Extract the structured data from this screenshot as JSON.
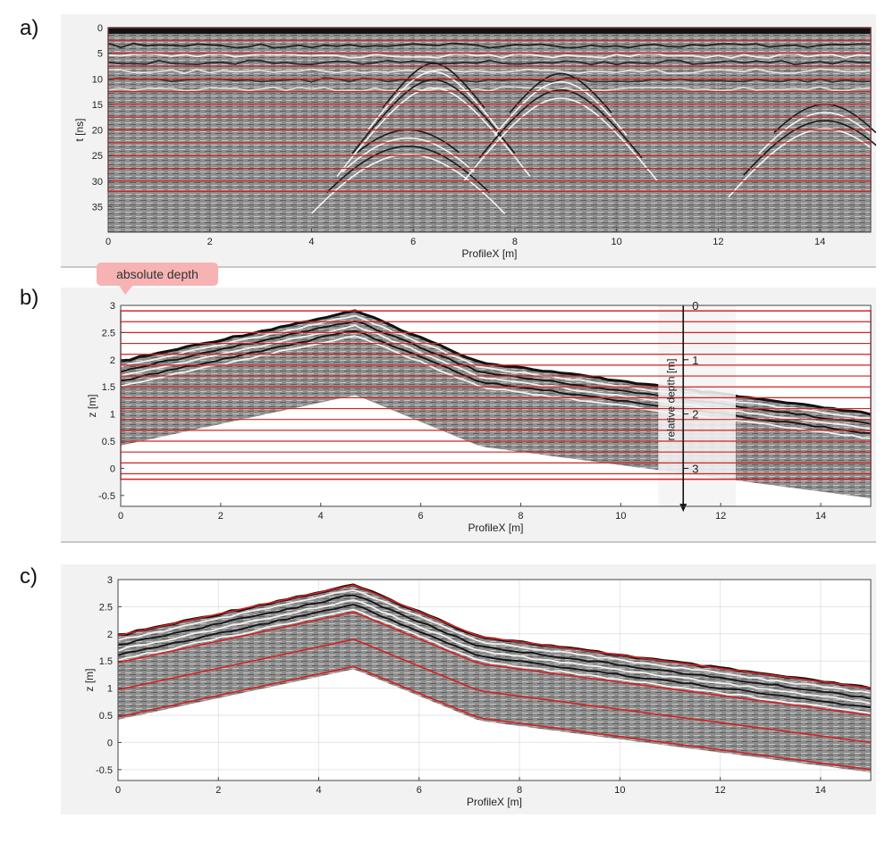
{
  "panels": {
    "a": {
      "letter": "a)"
    },
    "b": {
      "letter": "b)",
      "callout": "absolute depth"
    },
    "c": {
      "letter": "c)"
    }
  },
  "colors": {
    "panel_background": "#f2f2f2",
    "grid_red": "#d62020",
    "callout_pink": "#f7b3b3",
    "radargram_gray": "#8c8c8c"
  },
  "chart_data": [
    {
      "id": "a",
      "type": "heatmap",
      "description_kind": "GPR radargram (time domain)",
      "xlabel": "ProfileX [m]",
      "ylabel": "t [ns]",
      "xlim": [
        0,
        15
      ],
      "ylim": [
        40,
        0
      ],
      "xticks": [
        0,
        2,
        4,
        6,
        8,
        10,
        12,
        14
      ],
      "yticks": [
        0,
        5,
        10,
        15,
        20,
        25,
        30,
        35
      ],
      "grid": true,
      "overlay_box_t": [
        0,
        32
      ],
      "overlay_slices_t": [
        0,
        2.5,
        5,
        7.5,
        10,
        12.5,
        15,
        17.5,
        20,
        22.5,
        25,
        27.5,
        30,
        32
      ],
      "hyperbola_apexes": [
        {
          "x": 5.9,
          "t": 20
        },
        {
          "x": 6.4,
          "t": 7
        },
        {
          "x": 8.9,
          "t": 9
        },
        {
          "x": 14.1,
          "t": 15
        }
      ]
    },
    {
      "id": "b",
      "type": "heatmap",
      "description_kind": "topography-corrected radargram with absolute-depth slices",
      "xlabel": "ProfileX [m]",
      "ylabel": "z [m]",
      "xlim": [
        0,
        15
      ],
      "ylim": [
        -0.7,
        3
      ],
      "xticks": [
        0,
        2,
        4,
        6,
        8,
        10,
        12,
        14
      ],
      "yticks": [
        -0.5,
        0,
        0.5,
        1,
        1.5,
        2,
        2.5,
        3
      ],
      "grid": false,
      "surface_profile": {
        "x": [
          0,
          4.7,
          7.2,
          15
        ],
        "z": [
          1.97,
          2.9,
          1.95,
          1.0
        ]
      },
      "overlay_box_z": [
        -0.2,
        2.9
      ],
      "overlay_slices_z": [
        2.9,
        2.7,
        2.5,
        2.3,
        2.1,
        1.9,
        1.7,
        1.5,
        1.3,
        1.1,
        0.9,
        0.7,
        0.5,
        0.3,
        0.1,
        -0.1,
        -0.2
      ],
      "relative_axis": {
        "label": "relative depth [m]",
        "ticks": [
          0,
          1,
          2,
          3
        ]
      }
    },
    {
      "id": "c",
      "type": "heatmap",
      "description_kind": "topography-corrected radargram with relative-depth slices",
      "xlabel": "ProfileX [m]",
      "ylabel": "z [m]",
      "xlim": [
        0,
        15
      ],
      "ylim": [
        -0.7,
        3
      ],
      "xticks": [
        0,
        2,
        4,
        6,
        8,
        10,
        12,
        14
      ],
      "yticks": [
        -0.5,
        0,
        0.5,
        1,
        1.5,
        2,
        2.5,
        3
      ],
      "grid": true,
      "surface_profile": {
        "x": [
          0,
          4.7,
          7.2,
          15
        ],
        "z": [
          1.97,
          2.9,
          1.95,
          1.0
        ]
      },
      "relative_slices_m": [
        0,
        0.5,
        1,
        1.5
      ]
    }
  ]
}
